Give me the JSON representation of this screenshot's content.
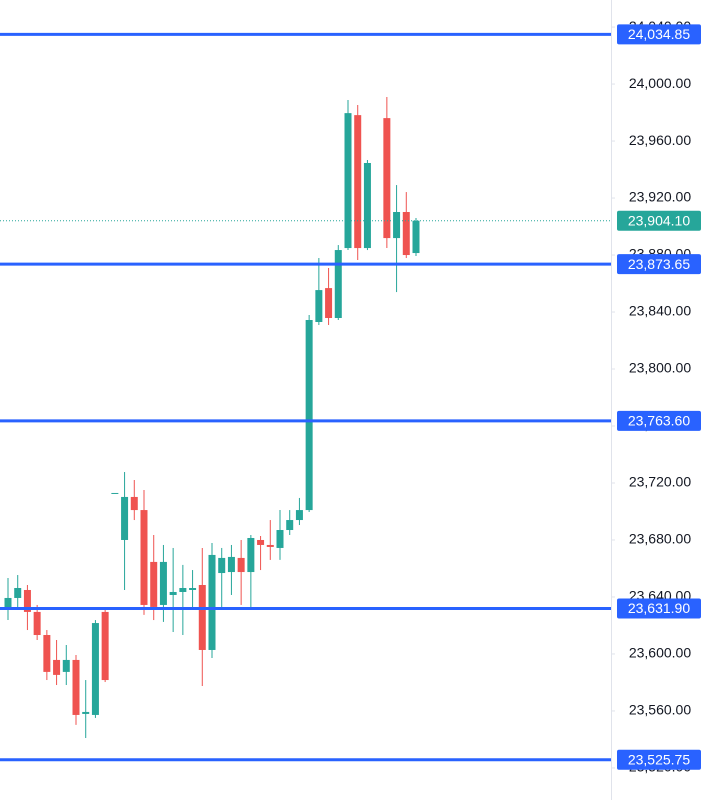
{
  "chart_data": {
    "type": "candlestick",
    "ylim": [
      23497.5,
      24059.0
    ],
    "yticks": [
      {
        "value": 23520,
        "label": "23,520.00"
      },
      {
        "value": 23560,
        "label": "23,560.00"
      },
      {
        "value": 23600,
        "label": "23,600.00"
      },
      {
        "value": 23640,
        "label": "23,640.00"
      },
      {
        "value": 23680,
        "label": "23,680.00"
      },
      {
        "value": 23720,
        "label": "23,720.00"
      },
      {
        "value": 23760,
        "label": "23,760.00"
      },
      {
        "value": 23800,
        "label": "23,800.00"
      },
      {
        "value": 23840,
        "label": "23,840.00"
      },
      {
        "value": 23880,
        "label": "23,880.00"
      },
      {
        "value": 23920,
        "label": "23,920.00"
      },
      {
        "value": 23960,
        "label": "23,960.00"
      },
      {
        "value": 24000,
        "label": "24,000.00"
      },
      {
        "value": 24040,
        "label": "24,040.00"
      }
    ],
    "up_color": "#26a69a",
    "down_color": "#ef5350",
    "level_color": "#2962ff",
    "open": [
      23630.9,
      23639.3,
      23644.9,
      23629.5,
      23613.3,
      23595.8,
      23587.4,
      23595.8,
      23557.9,
      23557.2,
      23629.5,
      23713.0,
      23680.0,
      23710.2,
      23701.0,
      23664.6,
      23634.4,
      23641.4,
      23643.5,
      23644.9,
      23648.4,
      23602.8,
      23656.8,
      23657.5,
      23667.4,
      23657.5,
      23680.0,
      23676.5,
      23674.4,
      23687.0,
      23694.0,
      23701.0,
      23833.0,
      23856.8,
      23835.8,
      23884.9,
      23978.2,
      23884.9,
      null,
      23976.1,
      23891.9,
      23910.2,
      23881.4
    ],
    "high": [
      23653.3,
      23655.4,
      23648.4,
      23634.4,
      23616.8,
      23609.8,
      23606.3,
      23599.3,
      23581.7,
      23623.8,
      23632.3,
      23713.0,
      23727.7,
      23722.1,
      23715.1,
      23683.5,
      23676.5,
      23674.4,
      23662.5,
      23658.9,
      23674.4,
      23677.9,
      23674.4,
      23676.5,
      23680.0,
      23683.5,
      23682.8,
      23694.0,
      23701.0,
      23701.0,
      23709.5,
      23837.9,
      23877.9,
      23870.9,
      23887.0,
      23988.8,
      23985.3,
      23946.7,
      null,
      23990.9,
      23929.1,
      23924.2,
      23906.0
    ],
    "low": [
      23623.8,
      23630.9,
      23616.8,
      23609.8,
      23581.7,
      23578.2,
      23578.2,
      23550.2,
      23541.0,
      23555.1,
      23580.3,
      23713.0,
      23644.9,
      23694.0,
      23627.4,
      23623.8,
      23622.5,
      23615.4,
      23613.3,
      23630.9,
      23577.5,
      23597.2,
      23632.3,
      23641.4,
      23634.4,
      23632.3,
      23658.9,
      23666.0,
      23666.0,
      23683.5,
      23690.5,
      23699.6,
      23830.9,
      23830.9,
      23834.4,
      23883.5,
      23876.5,
      23883.5,
      null,
      23884.9,
      23854.0,
      23877.9,
      23879.3
    ],
    "close": [
      23639.3,
      23646.3,
      23629.5,
      23613.3,
      23587.4,
      23585.3,
      23595.8,
      23557.2,
      23559.3,
      23621.7,
      23581.7,
      23713.0,
      23710.2,
      23701.0,
      23634.4,
      23633.0,
      23664.6,
      23643.5,
      23646.3,
      23646.3,
      23602.8,
      23669.5,
      23667.4,
      23668.1,
      23657.5,
      23681.4,
      23676.5,
      23675.1,
      23687.0,
      23694.0,
      23701.0,
      23834.4,
      23855.4,
      23835.8,
      23883.5,
      23979.6,
      23884.9,
      23944.6,
      null,
      23891.9,
      23910.2,
      23880.0,
      23904.1
    ],
    "levels": [
      {
        "value": 24034.85,
        "label": "24,034.85"
      },
      {
        "value": 23873.65,
        "label": "23,873.65"
      },
      {
        "value": 23763.6,
        "label": "23,763.60"
      },
      {
        "value": 23631.9,
        "label": "23,631.90"
      },
      {
        "value": 23525.75,
        "label": "23,525.75"
      }
    ],
    "last_price": {
      "value": 23904.1,
      "label": "23,904.10"
    }
  }
}
